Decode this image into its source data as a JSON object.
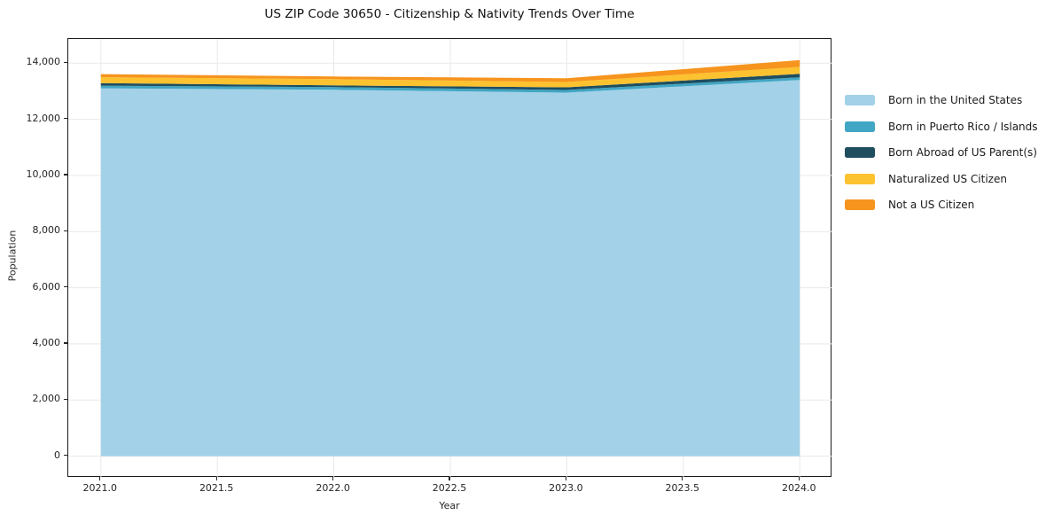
{
  "chart_data": {
    "type": "area",
    "stacked": true,
    "title": "US ZIP Code 30650 - Citizenship & Nativity Trends Over Time",
    "xlabel": "Year",
    "ylabel": "Population",
    "x": [
      2021,
      2022,
      2023,
      2024
    ],
    "series": [
      {
        "name": "Born in the United States",
        "color": "#A3D1E8",
        "values": [
          13100,
          13050,
          12950,
          13400
        ]
      },
      {
        "name": "Born in Puerto Rico / Islands",
        "color": "#41A6C4",
        "values": [
          95,
          95,
          95,
          95
        ]
      },
      {
        "name": "Born Abroad of US Parent(s)",
        "color": "#1F4E5F",
        "values": [
          95,
          65,
          95,
          125
        ]
      },
      {
        "name": "Naturalized US Citizen",
        "color": "#FCC22F",
        "values": [
          210,
          220,
          190,
          250
        ]
      },
      {
        "name": "Not a US Citizen",
        "color": "#F6941E",
        "values": [
          110,
          95,
          130,
          240
        ]
      }
    ],
    "totals_by_year": [
      13610,
      13525,
      13460,
      14110
    ],
    "xlim": [
      2020.86,
      2024.14
    ],
    "ylim": [
      -770,
      14860
    ],
    "x_tick_values": [
      2021,
      2021.5,
      2022,
      2022.5,
      2023,
      2023.5,
      2024
    ],
    "x_tick_labels": [
      "2021.0",
      "2021.5",
      "2022.0",
      "2022.5",
      "2023.0",
      "2023.5",
      "2024.0"
    ],
    "y_tick_values": [
      0,
      2000,
      4000,
      6000,
      8000,
      10000,
      12000,
      14000
    ],
    "y_tick_labels": [
      "0",
      "2,000",
      "4,000",
      "6,000",
      "8,000",
      "10,000",
      "12,000",
      "14,000"
    ],
    "grid": true,
    "grid_color": "#e9e9e9",
    "legend_position": "right of plot, no frame"
  }
}
